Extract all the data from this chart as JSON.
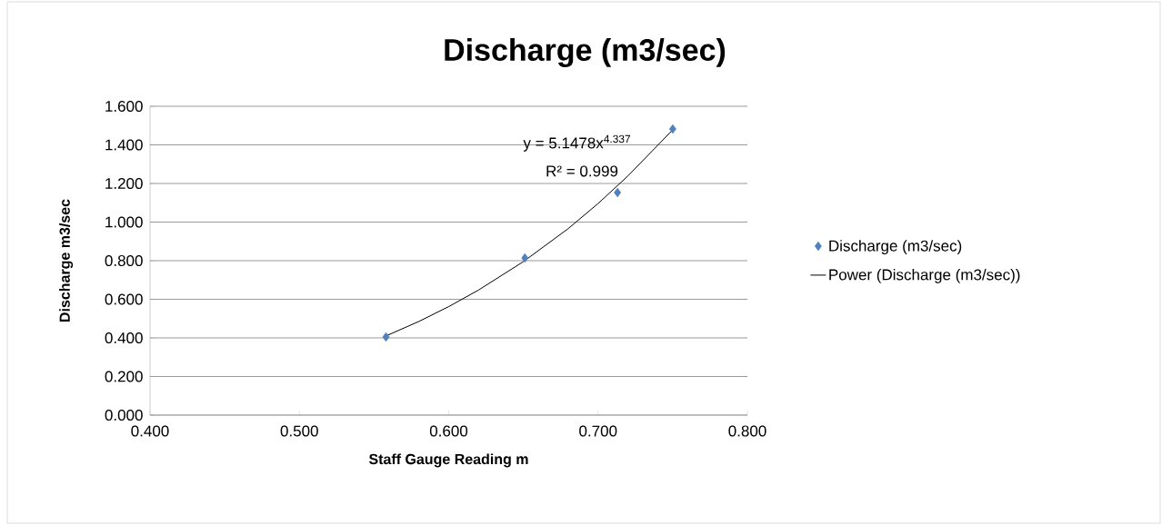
{
  "chart_data": {
    "type": "scatter",
    "title": "Discharge (m3/sec)",
    "xlabel": "Staff Gauge Reading m",
    "ylabel": "Discharge m3/sec",
    "series": [
      {
        "name": "Discharge (m3/sec)",
        "type": "scatter",
        "color": "#4f81bd",
        "marker": "diamond",
        "x": [
          0.558,
          0.651,
          0.713,
          0.75
        ],
        "values": [
          0.405,
          0.814,
          1.153,
          1.482
        ]
      },
      {
        "name": "Power (Discharge (m3/sec))",
        "type": "line",
        "color": "#000000",
        "marker": "none",
        "x": [
          0.558,
          0.58,
          0.6,
          0.62,
          0.65,
          0.68,
          0.7,
          0.72,
          0.75
        ],
        "values": [
          0.41,
          0.485,
          0.562,
          0.648,
          0.795,
          0.966,
          1.096,
          1.239,
          1.478
        ]
      }
    ],
    "annotations": [
      "y = 5.1478x$^{4.337}$",
      "R² = 0.999"
    ],
    "xlim": [
      0.4,
      0.8
    ],
    "ylim": [
      0,
      1.6
    ],
    "xticks": [
      {
        "value": 0.4,
        "label": "0.400"
      },
      {
        "value": 0.5,
        "label": "0.500"
      },
      {
        "value": 0.6,
        "label": "0.600"
      },
      {
        "value": 0.7,
        "label": "0.700"
      },
      {
        "value": 0.8,
        "label": "0.800"
      }
    ],
    "yticks": [
      {
        "value": 0,
        "label": "0.000"
      },
      {
        "value": 0.2,
        "label": "0.200"
      },
      {
        "value": 0.4,
        "label": "0.400"
      },
      {
        "value": 0.6,
        "label": "0.600"
      },
      {
        "value": 0.8,
        "label": "0.800"
      },
      {
        "value": 1.0,
        "label": "1.000"
      },
      {
        "value": 1.2,
        "label": "1.200"
      },
      {
        "value": 1.4,
        "label": "1.400"
      },
      {
        "value": 1.6,
        "label": "1.600"
      }
    ],
    "grid": "y",
    "legend": "right"
  }
}
